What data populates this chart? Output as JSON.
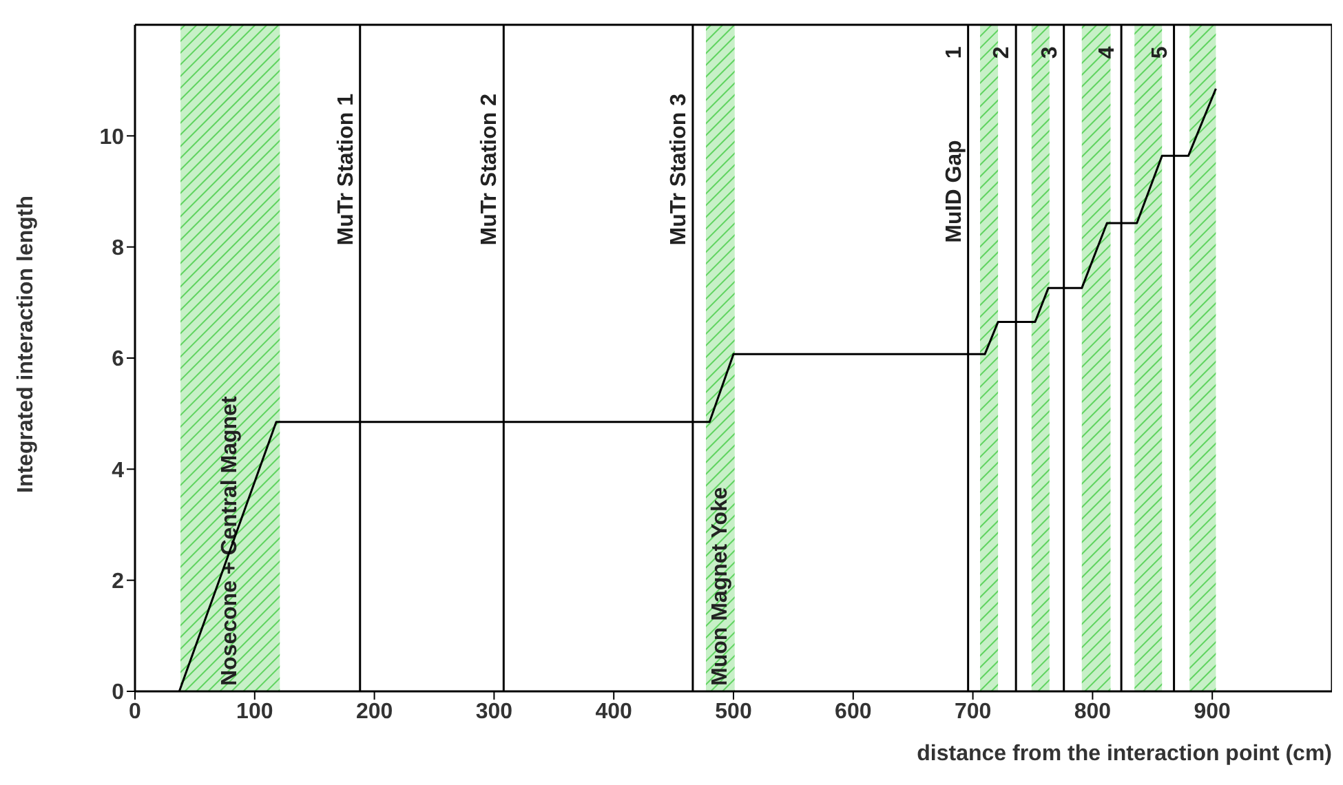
{
  "chart_data": {
    "type": "line",
    "xlabel": "distance from the interaction point (cm)",
    "ylabel": "Integrated interaction length",
    "xlim": [
      0,
      1000
    ],
    "xticks": [
      0,
      100,
      200,
      300,
      400,
      500,
      600,
      700,
      800,
      900
    ],
    "ylim": [
      0,
      12
    ],
    "yticks": [
      0,
      2,
      4,
      6,
      8,
      10
    ],
    "marker": "none",
    "line_style": "solid",
    "series": [
      {
        "color": "#000000",
        "x": [
          37,
          118,
          480,
          500,
          710,
          721,
          752,
          763,
          791,
          812,
          837,
          858,
          880,
          903
        ],
        "values": [
          0,
          4.85,
          4.85,
          6.07,
          6.07,
          6.65,
          6.65,
          7.26,
          7.26,
          8.43,
          8.43,
          9.64,
          9.64,
          10.85
        ]
      }
    ],
    "ref_lines": [
      {
        "axis": "x",
        "value": 188,
        "label": "MuTr Station 1",
        "color": "#000000"
      },
      {
        "axis": "x",
        "value": 308,
        "label": "MuTr Station 2",
        "color": "#000000"
      },
      {
        "axis": "x",
        "value": 466,
        "label": "MuTr Station 3",
        "color": "#000000"
      },
      {
        "axis": "x",
        "value": 696,
        "color": "#000000"
      },
      {
        "axis": "x",
        "value": 736,
        "color": "#000000"
      },
      {
        "axis": "x",
        "value": 776,
        "color": "#000000"
      },
      {
        "axis": "x",
        "value": 824,
        "color": "#000000"
      },
      {
        "axis": "x",
        "value": 868,
        "color": "#000000"
      }
    ],
    "bands": [
      {
        "axis": "x",
        "from": 38,
        "to": 121,
        "label": "Nosecone + Central Magnet",
        "color": "#5fd35f"
      },
      {
        "axis": "x",
        "from": 477,
        "to": 501,
        "label": "Muon Magnet Yoke",
        "color": "#5fd35f"
      },
      {
        "axis": "x",
        "from": 706,
        "to": 721,
        "label": null,
        "color": "#5fd35f"
      },
      {
        "axis": "x",
        "from": 749,
        "to": 764,
        "label": null,
        "color": "#5fd35f"
      },
      {
        "axis": "x",
        "from": 791,
        "to": 815,
        "label": null,
        "color": "#5fd35f"
      },
      {
        "axis": "x",
        "from": 835,
        "to": 858,
        "label": null,
        "color": "#5fd35f"
      },
      {
        "axis": "x",
        "from": 881,
        "to": 903,
        "label": null,
        "color": "#5fd35f"
      }
    ],
    "annotations": [
      {
        "text": "MuID Gap",
        "x": 696,
        "y": 9
      },
      {
        "text": "1",
        "x": 696,
        "y": 11.5
      },
      {
        "text": "2",
        "x": 736,
        "y": 11.5
      },
      {
        "text": "3",
        "x": 776,
        "y": 11.5
      },
      {
        "text": "4",
        "x": 824,
        "y": 11.5
      },
      {
        "text": "5",
        "x": 868,
        "y": 11.5
      }
    ]
  }
}
